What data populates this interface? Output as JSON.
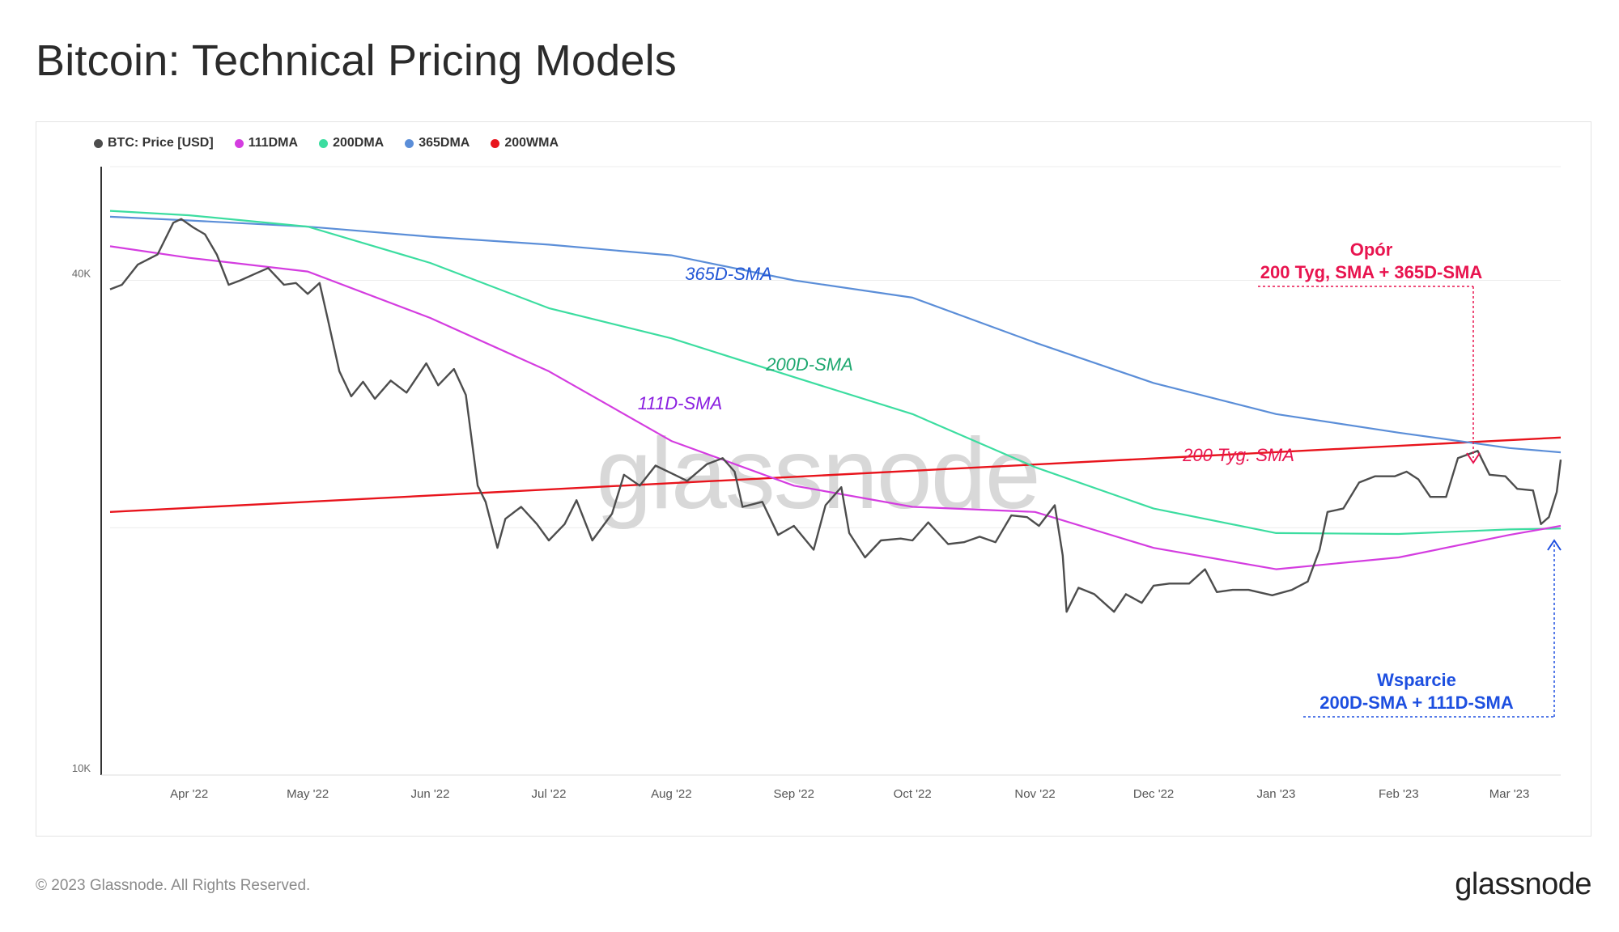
{
  "title": "Bitcoin: Technical Pricing Models",
  "footer": {
    "copyright": "© 2023 Glassnode. All Rights Reserved.",
    "brand": "glassnode"
  },
  "watermark": "glassnode",
  "colors": {
    "price": "#4d4d4d",
    "dma111": "#d43de0",
    "dma200": "#3cdda0",
    "dma365": "#5b8ed8",
    "wma200": "#e8141c",
    "resistance": "#e8144f",
    "support": "#1d4fe0"
  },
  "legend": [
    {
      "label": "BTC: Price [USD]",
      "color": "#4d4d4d"
    },
    {
      "label": "111DMA",
      "color": "#d43de0"
    },
    {
      "label": "200DMA",
      "color": "#3cdda0"
    },
    {
      "label": "365DMA",
      "color": "#5b8ed8"
    },
    {
      "label": "200WMA",
      "color": "#e8141c"
    }
  ],
  "inline_labels": {
    "sma365": "365D-SMA",
    "sma200": "200D-SMA",
    "sma111": "111D-SMA",
    "wma200": "200 Tyg. SMA"
  },
  "annotations": {
    "resistance_title": "Opór",
    "resistance_sub": "200 Tyg, SMA + 365D-SMA",
    "support_title": "Wsparcie",
    "support_sub": "200D-SMA + 111D-SMA"
  },
  "chart_data": {
    "type": "line",
    "title": "Bitcoin: Technical Pricing Models",
    "y_scale": "log",
    "ylim": [
      10000,
      55000
    ],
    "xlim": [
      "2022-03-12",
      "2023-03-14"
    ],
    "y_ticks": [
      {
        "value": 40000,
        "label": "40K"
      },
      {
        "value": 20000,
        "label": ""
      },
      {
        "value": 10000,
        "label": "10K"
      }
    ],
    "x_ticks": [
      {
        "date": "2022-04-01",
        "label": "Apr '22"
      },
      {
        "date": "2022-05-01",
        "label": "May '22"
      },
      {
        "date": "2022-06-01",
        "label": "Jun '22"
      },
      {
        "date": "2022-07-01",
        "label": "Jul '22"
      },
      {
        "date": "2022-08-01",
        "label": "Aug '22"
      },
      {
        "date": "2022-09-01",
        "label": "Sep '22"
      },
      {
        "date": "2022-10-01",
        "label": "Oct '22"
      },
      {
        "date": "2022-11-01",
        "label": "Nov '22"
      },
      {
        "date": "2022-12-01",
        "label": "Dec '22"
      },
      {
        "date": "2023-01-01",
        "label": "Jan '23"
      },
      {
        "date": "2023-02-01",
        "label": "Feb '23"
      },
      {
        "date": "2023-03-01",
        "label": "Mar '23"
      }
    ],
    "series": [
      {
        "name": "BTC: Price [USD]",
        "key": "price",
        "points": [
          [
            "2022-03-12",
            39000
          ],
          [
            "2022-03-15",
            39500
          ],
          [
            "2022-03-19",
            41800
          ],
          [
            "2022-03-24",
            43000
          ],
          [
            "2022-03-28",
            47000
          ],
          [
            "2022-03-30",
            47500
          ],
          [
            "2022-04-02",
            46400
          ],
          [
            "2022-04-05",
            45500
          ],
          [
            "2022-04-08",
            43000
          ],
          [
            "2022-04-11",
            39500
          ],
          [
            "2022-04-14",
            40000
          ],
          [
            "2022-04-18",
            40800
          ],
          [
            "2022-04-21",
            41400
          ],
          [
            "2022-04-25",
            39500
          ],
          [
            "2022-04-28",
            39700
          ],
          [
            "2022-05-01",
            38500
          ],
          [
            "2022-05-04",
            39700
          ],
          [
            "2022-05-06",
            36000
          ],
          [
            "2022-05-09",
            31000
          ],
          [
            "2022-05-12",
            28900
          ],
          [
            "2022-05-15",
            30100
          ],
          [
            "2022-05-18",
            28700
          ],
          [
            "2022-05-22",
            30200
          ],
          [
            "2022-05-26",
            29200
          ],
          [
            "2022-05-31",
            31700
          ],
          [
            "2022-06-03",
            29800
          ],
          [
            "2022-06-07",
            31200
          ],
          [
            "2022-06-10",
            29000
          ],
          [
            "2022-06-13",
            22500
          ],
          [
            "2022-06-15",
            21500
          ],
          [
            "2022-06-18",
            18900
          ],
          [
            "2022-06-20",
            20500
          ],
          [
            "2022-06-24",
            21200
          ],
          [
            "2022-06-28",
            20200
          ],
          [
            "2022-07-01",
            19300
          ],
          [
            "2022-07-05",
            20200
          ],
          [
            "2022-07-08",
            21600
          ],
          [
            "2022-07-12",
            19300
          ],
          [
            "2022-07-17",
            20800
          ],
          [
            "2022-07-20",
            23200
          ],
          [
            "2022-07-24",
            22500
          ],
          [
            "2022-07-28",
            23800
          ],
          [
            "2022-08-01",
            23300
          ],
          [
            "2022-08-05",
            22800
          ],
          [
            "2022-08-10",
            23900
          ],
          [
            "2022-08-14",
            24300
          ],
          [
            "2022-08-17",
            23400
          ],
          [
            "2022-08-19",
            21200
          ],
          [
            "2022-08-24",
            21500
          ],
          [
            "2022-08-28",
            19600
          ],
          [
            "2022-09-01",
            20100
          ],
          [
            "2022-09-06",
            18800
          ],
          [
            "2022-09-09",
            21300
          ],
          [
            "2022-09-13",
            22400
          ],
          [
            "2022-09-15",
            19700
          ],
          [
            "2022-09-19",
            18400
          ],
          [
            "2022-09-23",
            19300
          ],
          [
            "2022-09-28",
            19400
          ],
          [
            "2022-10-01",
            19300
          ],
          [
            "2022-10-05",
            20300
          ],
          [
            "2022-10-10",
            19100
          ],
          [
            "2022-10-14",
            19200
          ],
          [
            "2022-10-18",
            19500
          ],
          [
            "2022-10-22",
            19200
          ],
          [
            "2022-10-26",
            20700
          ],
          [
            "2022-10-30",
            20600
          ],
          [
            "2022-11-02",
            20100
          ],
          [
            "2022-11-06",
            21300
          ],
          [
            "2022-11-08",
            18500
          ],
          [
            "2022-11-09",
            15800
          ],
          [
            "2022-11-12",
            16900
          ],
          [
            "2022-11-16",
            16600
          ],
          [
            "2022-11-21",
            15800
          ],
          [
            "2022-11-24",
            16600
          ],
          [
            "2022-11-28",
            16200
          ],
          [
            "2022-12-01",
            17000
          ],
          [
            "2022-12-05",
            17100
          ],
          [
            "2022-12-10",
            17100
          ],
          [
            "2022-12-14",
            17800
          ],
          [
            "2022-12-17",
            16700
          ],
          [
            "2022-12-21",
            16800
          ],
          [
            "2022-12-25",
            16800
          ],
          [
            "2022-12-31",
            16550
          ],
          [
            "2023-01-05",
            16800
          ],
          [
            "2023-01-09",
            17200
          ],
          [
            "2023-01-12",
            18800
          ],
          [
            "2023-01-14",
            20900
          ],
          [
            "2023-01-18",
            21100
          ],
          [
            "2023-01-22",
            22700
          ],
          [
            "2023-01-26",
            23100
          ],
          [
            "2023-01-31",
            23100
          ],
          [
            "2023-02-03",
            23400
          ],
          [
            "2023-02-06",
            22900
          ],
          [
            "2023-02-09",
            21800
          ],
          [
            "2023-02-13",
            21800
          ],
          [
            "2023-02-16",
            24300
          ],
          [
            "2023-02-21",
            24800
          ],
          [
            "2023-02-24",
            23200
          ],
          [
            "2023-02-28",
            23100
          ],
          [
            "2023-03-03",
            22300
          ],
          [
            "2023-03-07",
            22200
          ],
          [
            "2023-03-09",
            20200
          ],
          [
            "2023-03-11",
            20600
          ],
          [
            "2023-03-13",
            22100
          ],
          [
            "2023-03-14",
            24200
          ]
        ]
      },
      {
        "name": "111DMA",
        "key": "dma111",
        "points": [
          [
            "2022-03-12",
            44000
          ],
          [
            "2022-04-01",
            42600
          ],
          [
            "2022-05-01",
            41000
          ],
          [
            "2022-06-01",
            36000
          ],
          [
            "2022-07-01",
            31000
          ],
          [
            "2022-08-01",
            25500
          ],
          [
            "2022-09-01",
            22500
          ],
          [
            "2022-10-01",
            21200
          ],
          [
            "2022-11-01",
            20900
          ],
          [
            "2022-12-01",
            18900
          ],
          [
            "2023-01-01",
            17800
          ],
          [
            "2023-02-01",
            18400
          ],
          [
            "2023-03-01",
            19600
          ],
          [
            "2023-03-14",
            20100
          ]
        ]
      },
      {
        "name": "200DMA",
        "key": "dma200",
        "points": [
          [
            "2022-03-12",
            48600
          ],
          [
            "2022-04-01",
            48000
          ],
          [
            "2022-05-01",
            46500
          ],
          [
            "2022-06-01",
            42000
          ],
          [
            "2022-07-01",
            37000
          ],
          [
            "2022-08-01",
            34000
          ],
          [
            "2022-09-01",
            30500
          ],
          [
            "2022-10-01",
            27500
          ],
          [
            "2022-11-01",
            23700
          ],
          [
            "2022-12-01",
            21100
          ],
          [
            "2023-01-01",
            19700
          ],
          [
            "2023-02-01",
            19650
          ],
          [
            "2023-03-01",
            19900
          ],
          [
            "2023-03-14",
            19950
          ]
        ]
      },
      {
        "name": "365DMA",
        "key": "dma365",
        "points": [
          [
            "2022-03-12",
            47800
          ],
          [
            "2022-04-01",
            47300
          ],
          [
            "2022-05-01",
            46500
          ],
          [
            "2022-06-01",
            45200
          ],
          [
            "2022-07-01",
            44200
          ],
          [
            "2022-08-01",
            42900
          ],
          [
            "2022-09-01",
            40000
          ],
          [
            "2022-10-01",
            38100
          ],
          [
            "2022-11-01",
            33600
          ],
          [
            "2022-12-01",
            30000
          ],
          [
            "2023-01-01",
            27500
          ],
          [
            "2023-02-01",
            26100
          ],
          [
            "2023-03-01",
            25000
          ],
          [
            "2023-03-14",
            24700
          ]
        ]
      },
      {
        "name": "200WMA",
        "key": "wma200",
        "points": [
          [
            "2022-03-12",
            20900
          ],
          [
            "2023-03-14",
            25750
          ]
        ]
      }
    ]
  }
}
